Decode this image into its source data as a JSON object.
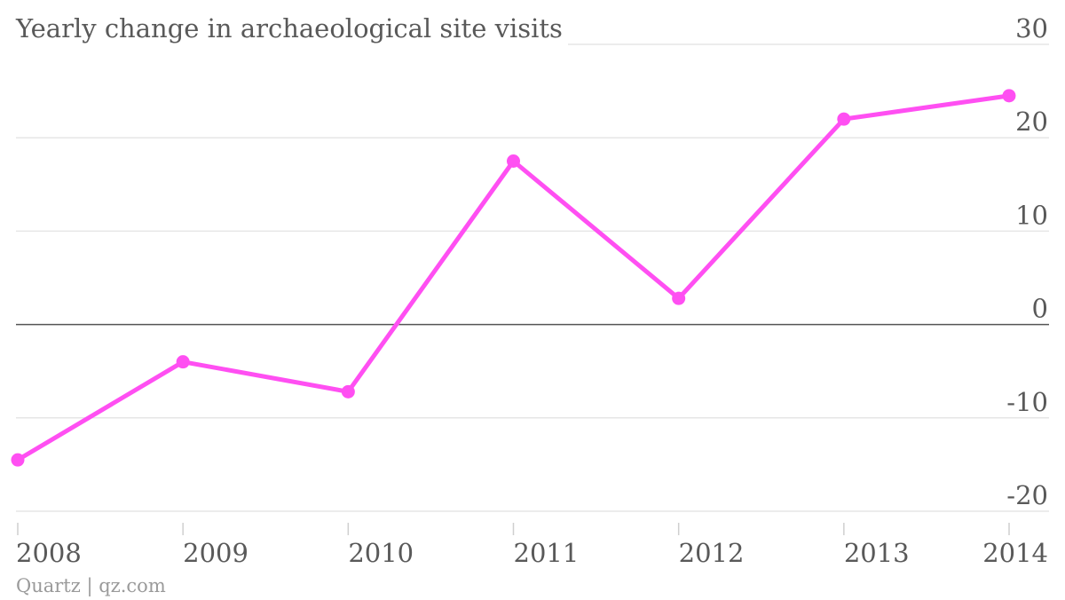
{
  "chart_data": {
    "type": "line",
    "title": "Yearly change in archaeological site visits",
    "categories": [
      "2008",
      "2009",
      "2010",
      "2011",
      "2012",
      "2013",
      "2014"
    ],
    "series": [
      {
        "values": [
          -14.5,
          -4,
          -7.2,
          17.5,
          2.8,
          22,
          24.5
        ],
        "color": "#ff4ff2"
      }
    ],
    "ylim": [
      -20,
      30
    ],
    "yticks": [
      30,
      20,
      10,
      0,
      -10,
      -20
    ],
    "ytick_labels": [
      "30",
      "20",
      "10",
      "0",
      "-10",
      "-20"
    ],
    "y_axis_position": "right",
    "grid": true,
    "legend": "none"
  },
  "source": "Quartz | qz.com"
}
